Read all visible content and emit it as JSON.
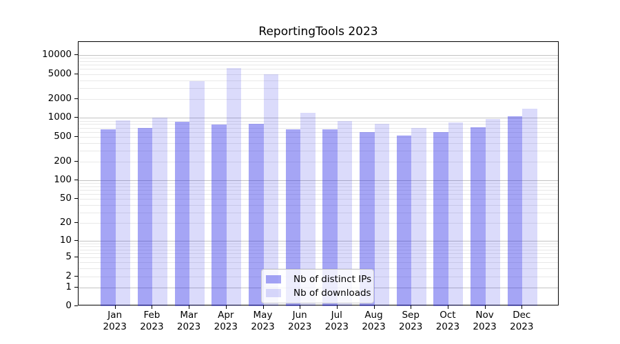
{
  "chart_data": {
    "type": "bar",
    "title": "ReportingTools 2023",
    "year_line": "2023",
    "categories": [
      "Jan",
      "Feb",
      "Mar",
      "Apr",
      "May",
      "Jun",
      "Jul",
      "Aug",
      "Sep",
      "Oct",
      "Nov",
      "Dec"
    ],
    "series": [
      {
        "name": "Nb of distinct IPs",
        "color": "rgba(40,40,230,0.42)",
        "values": [
          650,
          700,
          870,
          790,
          800,
          650,
          650,
          590,
          520,
          600,
          710,
          1060
        ]
      },
      {
        "name": "Nb of downloads",
        "color": "rgba(40,40,230,0.17)",
        "values": [
          920,
          1020,
          3900,
          6200,
          5000,
          1200,
          900,
          810,
          700,
          850,
          950,
          1400
        ]
      }
    ],
    "yscale": "symlog (rendered as log10(1+v))",
    "ylim": [
      0,
      16000
    ],
    "yticks": [
      0,
      1,
      2,
      5,
      10,
      20,
      50,
      100,
      200,
      500,
      1000,
      2000,
      5000,
      10000
    ],
    "gridlines": {
      "major": [
        1,
        10,
        100,
        1000,
        10000
      ],
      "minor": [
        2,
        3,
        4,
        5,
        6,
        7,
        8,
        9,
        20,
        30,
        40,
        50,
        60,
        70,
        80,
        90,
        200,
        300,
        400,
        500,
        600,
        700,
        800,
        900,
        2000,
        3000,
        4000,
        5000,
        6000,
        7000,
        8000,
        9000
      ]
    },
    "colors": {
      "major_grid": "#c2c2c2",
      "minor_grid": "#e8e8e8",
      "spine": "#000000"
    },
    "legend": {
      "position": "lower center"
    },
    "xlabel": "",
    "ylabel": ""
  }
}
